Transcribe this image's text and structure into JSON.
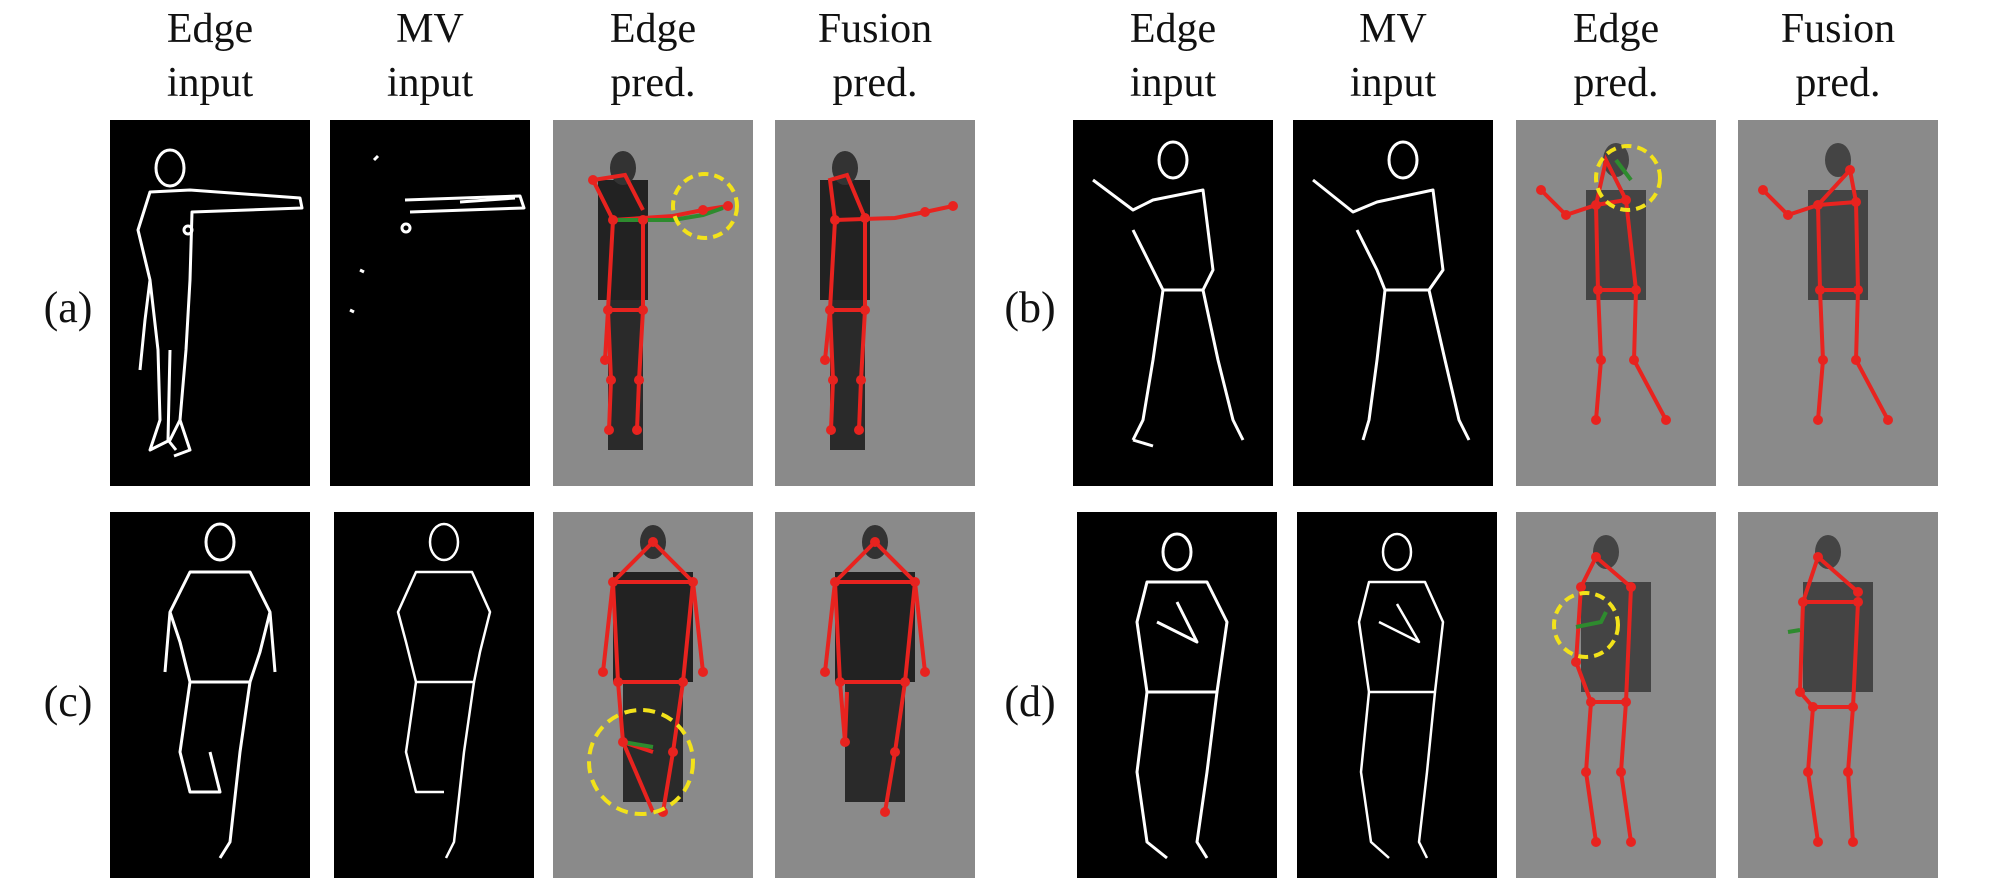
{
  "column_headers": [
    "Edge\ninput",
    "MV\ninput",
    "Edge\npred.",
    "Fusion\npred."
  ],
  "headers_left": [
    {
      "line1": "Edge",
      "line2": "input"
    },
    {
      "line1": "MV",
      "line2": "input"
    },
    {
      "line1": "Edge",
      "line2": "pred."
    },
    {
      "line1": "Fusion",
      "line2": "pred."
    }
  ],
  "headers_right": [
    {
      "line1": "Edge",
      "line2": "input"
    },
    {
      "line1": "MV",
      "line2": "input"
    },
    {
      "line1": "Edge",
      "line2": "pred."
    },
    {
      "line1": "Fusion",
      "line2": "pred."
    }
  ],
  "panels": {
    "a": "(a)",
    "b": "(b)",
    "c": "(c)",
    "d": "(d)"
  },
  "colors": {
    "skeleton_pred": "#e8231f",
    "skeleton_gt": "#2e8b2e",
    "highlight_circle": "#f2e21a",
    "edge_stroke": "#ffffff"
  }
}
